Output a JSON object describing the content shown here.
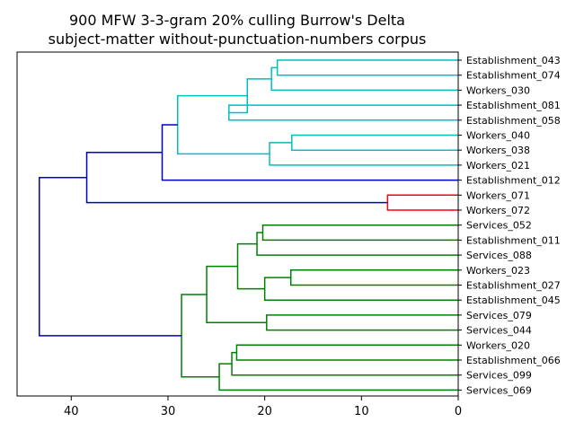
{
  "title": {
    "line1": "900 MFW 3-3-gram 20% culling Burrow's Delta",
    "line2": "subject-matter without-punctuation-numbers corpus"
  },
  "chart_data": {
    "type": "dendrogram",
    "orientation": "left",
    "x_range": [
      45.6,
      0
    ],
    "x_ticks": [
      40,
      30,
      20,
      10,
      0
    ],
    "colors": {
      "cyan": "#00bfbf",
      "blue": "#0000cc",
      "red": "#ff0000",
      "green": "#008000"
    },
    "leaves": [
      "Establishment_043",
      "Establishment_074",
      "Workers_030",
      "Establishment_081",
      "Establishment_058",
      "Workers_040",
      "Workers_038",
      "Workers_021",
      "Establishment_012",
      "Workers_071",
      "Workers_072",
      "Services_052",
      "Establishment_011",
      "Services_088",
      "Workers_023",
      "Establishment_027",
      "Establishment_045",
      "Services_079",
      "Services_044",
      "Workers_020",
      "Establishment_066",
      "Services_099",
      "Services_069"
    ],
    "merges": [
      {
        "id": "c1",
        "a": 0,
        "b": 1,
        "height": 18.7,
        "color": "cyan"
      },
      {
        "id": "c2",
        "a": "c1",
        "b": 2,
        "height": 19.3,
        "color": "cyan"
      },
      {
        "id": "c3",
        "a": 3,
        "b": 4,
        "height": 23.7,
        "color": "cyan"
      },
      {
        "id": "c4",
        "a": "c2",
        "b": "c3",
        "height": 21.8,
        "color": "cyan"
      },
      {
        "id": "c5",
        "a": 5,
        "b": 6,
        "height": 17.2,
        "color": "cyan"
      },
      {
        "id": "c6",
        "a": "c5",
        "b": 7,
        "height": 19.5,
        "color": "cyan"
      },
      {
        "id": "c7",
        "a": "c4",
        "b": "c6",
        "height": 29.0,
        "color": "cyan"
      },
      {
        "id": "c8",
        "a": "c7",
        "b": 8,
        "height": 30.6,
        "color": "blue"
      },
      {
        "id": "c9",
        "a": 9,
        "b": 10,
        "height": 7.3,
        "color": "red"
      },
      {
        "id": "c10",
        "a": "c8",
        "b": "c9",
        "height": 38.4,
        "color": "blue"
      },
      {
        "id": "c11",
        "a": 11,
        "b": 12,
        "height": 20.2,
        "color": "green"
      },
      {
        "id": "c12",
        "a": "c11",
        "b": 13,
        "height": 20.8,
        "color": "green"
      },
      {
        "id": "c13",
        "a": 14,
        "b": 15,
        "height": 17.3,
        "color": "green"
      },
      {
        "id": "c14",
        "a": "c13",
        "b": 16,
        "height": 20.0,
        "color": "green"
      },
      {
        "id": "c15",
        "a": "c12",
        "b": "c14",
        "height": 22.8,
        "color": "green"
      },
      {
        "id": "c16",
        "a": 17,
        "b": 18,
        "height": 19.8,
        "color": "green"
      },
      {
        "id": "c17",
        "a": "c15",
        "b": "c16",
        "height": 26.0,
        "color": "green"
      },
      {
        "id": "c18",
        "a": 19,
        "b": 20,
        "height": 22.9,
        "color": "green"
      },
      {
        "id": "c19",
        "a": "c18",
        "b": 21,
        "height": 23.4,
        "color": "green"
      },
      {
        "id": "c20",
        "a": "c19",
        "b": 22,
        "height": 24.7,
        "color": "green"
      },
      {
        "id": "c21",
        "a": "c17",
        "b": "c20",
        "height": 28.6,
        "color": "green"
      },
      {
        "id": "c22",
        "a": "c10",
        "b": "c21",
        "height": 43.3,
        "color": "blue"
      }
    ]
  }
}
